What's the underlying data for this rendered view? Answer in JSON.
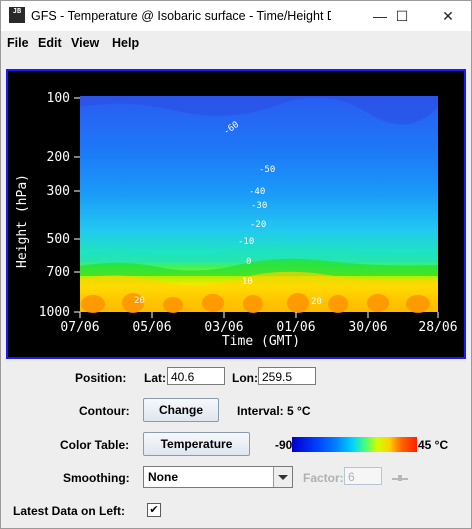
{
  "window": {
    "title": "GFS - Temperature @ Isobaric surface - Time/Height Di...",
    "icon_text": "JB",
    "controls": {
      "minimize": "—",
      "maximize": "☐",
      "close": "✕"
    }
  },
  "menu": {
    "file": "File",
    "edit": "Edit",
    "view": "View",
    "help": "Help"
  },
  "plot": {
    "y_axis_label": "Height (hPa)",
    "x_axis_label": "Time (GMT)",
    "y_ticks": [
      "100",
      "200",
      "300",
      "500",
      "700",
      "1000"
    ],
    "x_ticks": [
      "07/06",
      "05/06",
      "03/06",
      "01/06",
      "30/06",
      "28/06"
    ],
    "contour_labels": [
      "-60",
      "-50",
      "-40",
      "-30",
      "-20",
      "-10",
      "0",
      "10",
      "20",
      "20"
    ]
  },
  "position": {
    "label": "Position:",
    "lat_label": "Lat:",
    "lat_value": "40.6",
    "lon_label": "Lon:",
    "lon_value": "259.5"
  },
  "contour": {
    "label": "Contour:",
    "button": "Change",
    "interval": "Interval: 5 °C"
  },
  "color_table": {
    "label": "Color Table:",
    "button": "Temperature",
    "min": "-90",
    "max": "45 °C"
  },
  "smoothing": {
    "label": "Smoothing:",
    "value": "None",
    "factor_label": "Factor:",
    "factor_value": "6"
  },
  "latest": {
    "label": "Latest Data on Left:",
    "checked": "✔"
  }
}
